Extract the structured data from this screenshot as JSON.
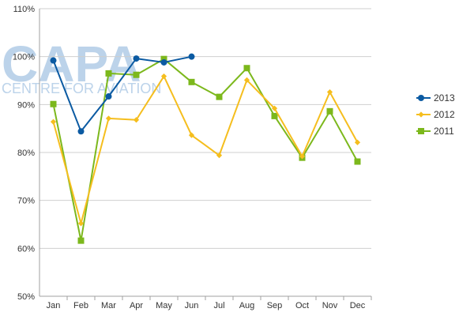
{
  "watermark": {
    "brand": "CAPA",
    "tagline": "CENTRE FOR AVIATION"
  },
  "chart_data": {
    "type": "line",
    "title": "",
    "xlabel": "",
    "ylabel": "",
    "categories": [
      "Jan",
      "Feb",
      "Mar",
      "Apr",
      "May",
      "Jun",
      "Jul",
      "Aug",
      "Sep",
      "Oct",
      "Nov",
      "Dec"
    ],
    "ylim": [
      50,
      110
    ],
    "yticks": [
      50,
      60,
      70,
      80,
      90,
      100,
      110
    ],
    "ytick_format": "{v}%",
    "grid": true,
    "legend_position": "right",
    "series": [
      {
        "name": "2013",
        "color": "#0b5aa2",
        "marker": "circle",
        "values": [
          99.2,
          84.4,
          91.7,
          99.6,
          98.8,
          100.0,
          null,
          null,
          null,
          null,
          null,
          null
        ]
      },
      {
        "name": "2012",
        "color": "#f5be1e",
        "marker": "diamond",
        "values": [
          86.4,
          65.2,
          87.1,
          86.8,
          95.9,
          83.6,
          79.4,
          95.1,
          89.2,
          79.2,
          92.6,
          82.1
        ]
      },
      {
        "name": "2011",
        "color": "#7cb81c",
        "marker": "square",
        "values": [
          90.1,
          61.6,
          96.5,
          96.2,
          99.5,
          94.7,
          91.6,
          97.6,
          87.6,
          78.9,
          88.6,
          78.1
        ]
      }
    ]
  }
}
